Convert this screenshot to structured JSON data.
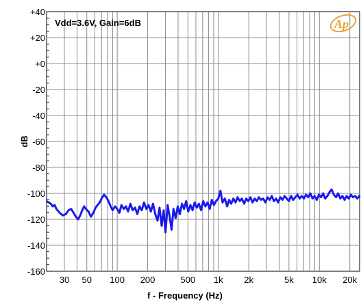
{
  "chart_data": {
    "type": "line",
    "title": "",
    "annotation": "Vdd=3.6V, Gain=6dB",
    "logo_text": "Ap",
    "xlabel": "f - Frequency (Hz)",
    "ylabel": "dB",
    "xscale": "log",
    "xlim": [
      20,
      25000
    ],
    "ylim": [
      -160,
      40
    ],
    "x_tick_labels": [
      {
        "value": 30,
        "label": "30"
      },
      {
        "value": 50,
        "label": "50"
      },
      {
        "value": 100,
        "label": "100"
      },
      {
        "value": 200,
        "label": "200"
      },
      {
        "value": 500,
        "label": "500"
      },
      {
        "value": 1000,
        "label": "1k"
      },
      {
        "value": 2000,
        "label": "2k"
      },
      {
        "value": 5000,
        "label": "5k"
      },
      {
        "value": 10000,
        "label": "10k"
      },
      {
        "value": 20000,
        "label": "20k"
      }
    ],
    "y_tick_labels": [
      {
        "value": 40,
        "label": "+40"
      },
      {
        "value": 20,
        "label": "+20"
      },
      {
        "value": 0,
        "label": "+0"
      },
      {
        "value": -20,
        "label": "-20"
      },
      {
        "value": -40,
        "label": "-40"
      },
      {
        "value": -60,
        "label": "-60"
      },
      {
        "value": -80,
        "label": "-80"
      },
      {
        "value": -100,
        "label": "-100"
      },
      {
        "value": -120,
        "label": "-120"
      },
      {
        "value": -140,
        "label": "-140"
      },
      {
        "value": -160,
        "label": "-160"
      }
    ],
    "grid": true,
    "series": [
      {
        "color": "#1a1aee",
        "points": [
          [
            20,
            -106
          ],
          [
            21,
            -107
          ],
          [
            22,
            -108
          ],
          [
            23,
            -110
          ],
          [
            24,
            -109
          ],
          [
            25,
            -112
          ],
          [
            27,
            -115
          ],
          [
            29,
            -117
          ],
          [
            31,
            -116
          ],
          [
            33,
            -113
          ],
          [
            35,
            -112
          ],
          [
            37,
            -115
          ],
          [
            39,
            -118
          ],
          [
            41,
            -120
          ],
          [
            43,
            -117
          ],
          [
            45,
            -113
          ],
          [
            47,
            -110
          ],
          [
            49,
            -112
          ],
          [
            52,
            -114
          ],
          [
            55,
            -118
          ],
          [
            58,
            -115
          ],
          [
            61,
            -111
          ],
          [
            64,
            -109
          ],
          [
            67,
            -107
          ],
          [
            70,
            -104
          ],
          [
            74,
            -101
          ],
          [
            78,
            -103
          ],
          [
            82,
            -106
          ],
          [
            86,
            -110
          ],
          [
            90,
            -113
          ],
          [
            95,
            -110
          ],
          [
            100,
            -112
          ],
          [
            105,
            -115
          ],
          [
            110,
            -109
          ],
          [
            116,
            -112
          ],
          [
            122,
            -110
          ],
          [
            128,
            -114
          ],
          [
            135,
            -108
          ],
          [
            142,
            -113
          ],
          [
            150,
            -111
          ],
          [
            158,
            -116
          ],
          [
            166,
            -110
          ],
          [
            175,
            -113
          ],
          [
            184,
            -107
          ],
          [
            194,
            -112
          ],
          [
            204,
            -109
          ],
          [
            215,
            -114
          ],
          [
            226,
            -108
          ],
          [
            238,
            -116
          ],
          [
            250,
            -121
          ],
          [
            262,
            -111
          ],
          [
            275,
            -125
          ],
          [
            288,
            -113
          ],
          [
            300,
            -130
          ],
          [
            315,
            -109
          ],
          [
            330,
            -118
          ],
          [
            345,
            -128
          ],
          [
            360,
            -112
          ],
          [
            378,
            -119
          ],
          [
            397,
            -110
          ],
          [
            416,
            -116
          ],
          [
            437,
            -108
          ],
          [
            458,
            -112
          ],
          [
            480,
            -106
          ],
          [
            504,
            -114
          ],
          [
            530,
            -109
          ],
          [
            556,
            -113
          ],
          [
            584,
            -107
          ],
          [
            613,
            -111
          ],
          [
            643,
            -108
          ],
          [
            675,
            -113
          ],
          [
            709,
            -106
          ],
          [
            745,
            -110
          ],
          [
            782,
            -107
          ],
          [
            821,
            -112
          ],
          [
            862,
            -105
          ],
          [
            905,
            -109
          ],
          [
            950,
            -106
          ],
          [
            1000,
            -104
          ],
          [
            1050,
            -98
          ],
          [
            1100,
            -107
          ],
          [
            1160,
            -104
          ],
          [
            1220,
            -110
          ],
          [
            1280,
            -105
          ],
          [
            1340,
            -108
          ],
          [
            1410,
            -104
          ],
          [
            1480,
            -107
          ],
          [
            1550,
            -103
          ],
          [
            1630,
            -106
          ],
          [
            1710,
            -104
          ],
          [
            1800,
            -108
          ],
          [
            1890,
            -104
          ],
          [
            1980,
            -106
          ],
          [
            2080,
            -103
          ],
          [
            2180,
            -107
          ],
          [
            2290,
            -104
          ],
          [
            2400,
            -106
          ],
          [
            2520,
            -103
          ],
          [
            2650,
            -105
          ],
          [
            2780,
            -104
          ],
          [
            2920,
            -107
          ],
          [
            3070,
            -103
          ],
          [
            3220,
            -105
          ],
          [
            3380,
            -102
          ],
          [
            3550,
            -106
          ],
          [
            3730,
            -104
          ],
          [
            3910,
            -107
          ],
          [
            4110,
            -103
          ],
          [
            4310,
            -105
          ],
          [
            4530,
            -102
          ],
          [
            4750,
            -104
          ],
          [
            4990,
            -106
          ],
          [
            5240,
            -102
          ],
          [
            5500,
            -105
          ],
          [
            5780,
            -103
          ],
          [
            6070,
            -101
          ],
          [
            6370,
            -104
          ],
          [
            6690,
            -102
          ],
          [
            7020,
            -104
          ],
          [
            7370,
            -101
          ],
          [
            7740,
            -103
          ],
          [
            8130,
            -100
          ],
          [
            8540,
            -104
          ],
          [
            8960,
            -102
          ],
          [
            9410,
            -105
          ],
          [
            9880,
            -101
          ],
          [
            10400,
            -103
          ],
          [
            10900,
            -100
          ],
          [
            11400,
            -104
          ],
          [
            12000,
            -102
          ],
          [
            12600,
            -99
          ],
          [
            13200,
            -97
          ],
          [
            13900,
            -101
          ],
          [
            14600,
            -103
          ],
          [
            15300,
            -100
          ],
          [
            16100,
            -104
          ],
          [
            16900,
            -102
          ],
          [
            17700,
            -105
          ],
          [
            18600,
            -102
          ],
          [
            19500,
            -104
          ],
          [
            20500,
            -101
          ],
          [
            21500,
            -103
          ],
          [
            22600,
            -102
          ],
          [
            23700,
            -104
          ],
          [
            24800,
            -102
          ],
          [
            25000,
            -103
          ]
        ]
      }
    ]
  }
}
